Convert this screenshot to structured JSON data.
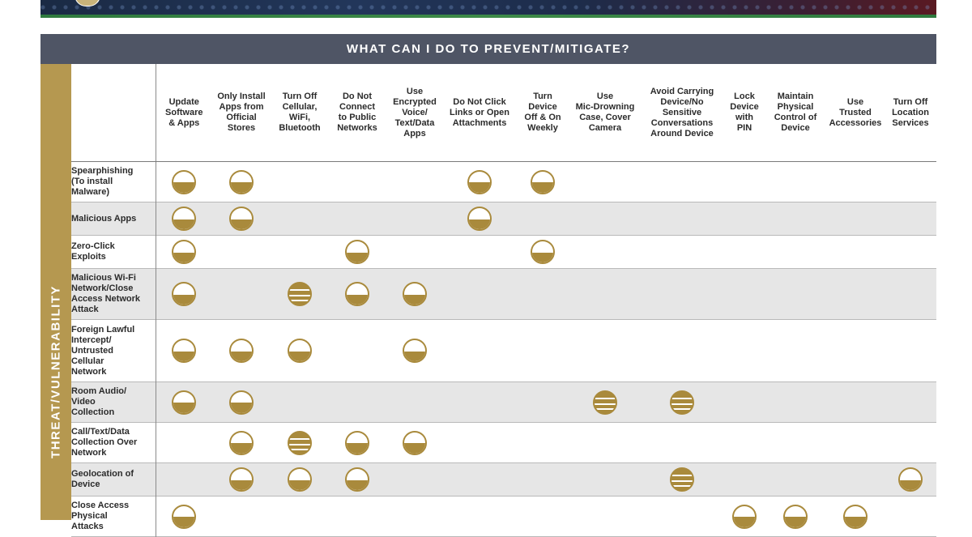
{
  "header": {
    "title": "WHAT CAN I DO TO PREVENT/MITIGATE?"
  },
  "side_label": "THREAT/VULNERABILITY",
  "colors": {
    "header_bg": "#4f5565",
    "side_bg": "#b59850",
    "dot": "#a98a3c",
    "alt_row": "#e6e6e6"
  },
  "legend_symbols": {
    "half": "half-filled circle icon",
    "full": "striped filled circle icon"
  },
  "columns": [
    [
      "Update",
      "Software",
      "& Apps"
    ],
    [
      "Only Install",
      "Apps from",
      "Official",
      "Stores"
    ],
    [
      "Turn Off",
      "Cellular,",
      "WiFi,",
      "Bluetooth"
    ],
    [
      "Do Not",
      "Connect",
      "to Public",
      "Networks"
    ],
    [
      "Use",
      "Encrypted",
      "Voice/",
      "Text/Data",
      "Apps"
    ],
    [
      "Do Not Click",
      "Links or Open",
      "Attachments"
    ],
    [
      "Turn",
      "Device",
      "Off & On",
      "Weekly"
    ],
    [
      "Use",
      "Mic-Drowning",
      "Case, Cover",
      "Camera"
    ],
    [
      "Avoid Carrying",
      "Device/No",
      "Sensitive",
      "Conversations",
      "Around Device"
    ],
    [
      "Lock",
      "Device",
      "with",
      "PIN"
    ],
    [
      "Maintain",
      "Physical",
      "Control of",
      "Device"
    ],
    [
      "Use",
      "Trusted",
      "Accessories"
    ],
    [
      "Turn Off",
      "Location",
      "Services"
    ]
  ],
  "rows": [
    {
      "label": [
        "Spearphishing",
        "(To install",
        "Malware)"
      ],
      "marks": [
        "half",
        "half",
        "",
        "",
        "",
        "half",
        "half",
        "",
        "",
        "",
        "",
        "",
        ""
      ]
    },
    {
      "label": [
        "Malicious Apps"
      ],
      "marks": [
        "half",
        "half",
        "",
        "",
        "",
        "half",
        "",
        "",
        "",
        "",
        "",
        "",
        ""
      ]
    },
    {
      "label": [
        "Zero-Click",
        "Exploits"
      ],
      "marks": [
        "half",
        "",
        "",
        "half",
        "",
        "",
        "half",
        "",
        "",
        "",
        "",
        "",
        ""
      ]
    },
    {
      "label": [
        "Malicious Wi-Fi",
        "Network/Close",
        "Access Network",
        "Attack"
      ],
      "marks": [
        "half",
        "",
        "full",
        "half",
        "half",
        "",
        "",
        "",
        "",
        "",
        "",
        "",
        ""
      ]
    },
    {
      "label": [
        "Foreign Lawful",
        "Intercept/",
        "Untrusted",
        "Cellular",
        "Network"
      ],
      "marks": [
        "half",
        "half",
        "half",
        "",
        "half",
        "",
        "",
        "",
        "",
        "",
        "",
        "",
        ""
      ]
    },
    {
      "label": [
        "Room Audio/",
        "Video",
        "Collection"
      ],
      "marks": [
        "half",
        "half",
        "",
        "",
        "",
        "",
        "",
        "full",
        "full",
        "",
        "",
        "",
        ""
      ]
    },
    {
      "label": [
        "Call/Text/Data",
        "Collection Over",
        "Network"
      ],
      "marks": [
        "",
        "half",
        "full",
        "half",
        "half",
        "",
        "",
        "",
        "",
        "",
        "",
        "",
        ""
      ]
    },
    {
      "label": [
        "Geolocation of",
        "Device"
      ],
      "marks": [
        "",
        "half",
        "half",
        "half",
        "",
        "",
        "",
        "",
        "full",
        "",
        "",
        "",
        "half"
      ]
    },
    {
      "label": [
        "Close Access",
        "Physical",
        "Attacks"
      ],
      "marks": [
        "half",
        "",
        "",
        "",
        "",
        "",
        "",
        "",
        "",
        "half",
        "half",
        "half",
        ""
      ]
    }
  ]
}
